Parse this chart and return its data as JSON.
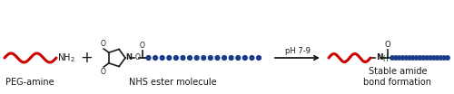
{
  "bg_color": "#ffffff",
  "red_color": "#cc0000",
  "blue_color": "#1a3a8a",
  "black_color": "#1a1a1a",
  "label_fontsize": 7.0,
  "figsize": [
    5.0,
    1.04
  ],
  "dpi": 100,
  "peg_amine_label": "PEG-amine",
  "nhs_label": "NHS ester molecule",
  "product_label": "Stable amide\nbond formation",
  "arrow_label": "pH 7-9"
}
